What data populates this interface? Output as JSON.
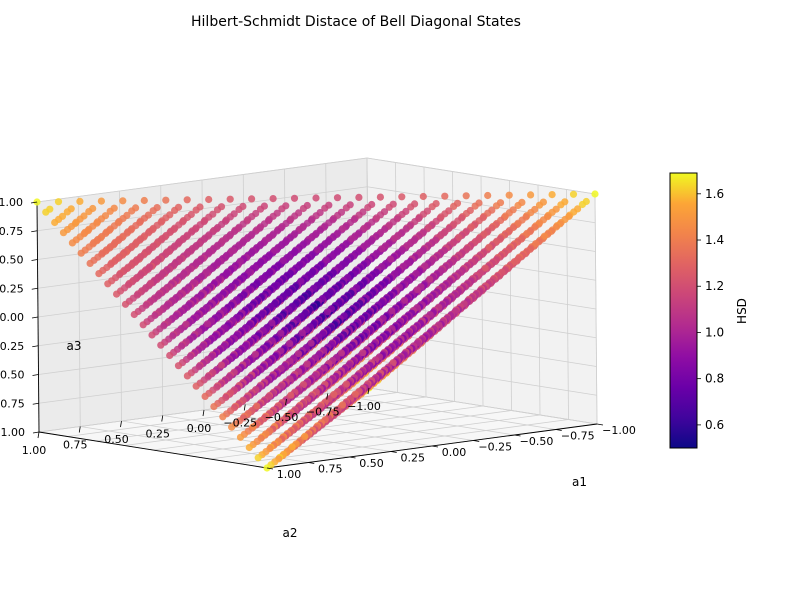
{
  "chart_data": {
    "type": "scatter",
    "projection": "3d",
    "title": "Hilbert-Schmidt Distace of Bell Diagonal States",
    "xlabel": "a1",
    "ylabel": "a2",
    "zlabel": "a3",
    "xlim": [
      -1.0,
      1.0
    ],
    "ylim": [
      -1.0,
      1.0
    ],
    "zlim": [
      -1.0,
      1.0
    ],
    "x_ticks": [
      "-1.00",
      "-0.75",
      "-0.50",
      "-0.25",
      "0.00",
      "0.25",
      "0.50",
      "0.75",
      "1.00"
    ],
    "y_ticks": [
      "1.00",
      "0.75",
      "0.50",
      "0.25",
      "0.00",
      "-0.25",
      "-0.50",
      "-0.75",
      "-1.00"
    ],
    "z_ticks": [
      "-1.00",
      "-0.75",
      "-0.50",
      "-0.25",
      "0.00",
      "0.25",
      "0.50",
      "0.75",
      "1.00"
    ],
    "y_ticks_display": [
      "1.00",
      "0.75",
      "0.50",
      "0.25",
      "0.00",
      "−0.25",
      "−0.50",
      "−0.75",
      "−1.00"
    ],
    "x_ticks_display": [
      "−1.00",
      "−0.75",
      "−0.50",
      "−0.25",
      "0.00",
      "0.25",
      "0.50",
      "0.75",
      "1.00"
    ],
    "z_ticks_display": [
      "−1.00",
      "−0.75",
      "−0.50",
      "−0.25",
      "0.00",
      "0.25",
      "0.50",
      "0.75",
      "1.00"
    ],
    "region": "Bell diagonal states tetrahedron",
    "vertices": [
      {
        "a1": -1,
        "a2": -1,
        "a3": -1
      },
      {
        "a1": -1,
        "a2": 1,
        "a3": 1
      },
      {
        "a1": 1,
        "a2": -1,
        "a3": 1
      },
      {
        "a1": 1,
        "a2": 1,
        "a3": -1
      }
    ],
    "color_value": "HSD",
    "colorbar": {
      "label": "HSD",
      "range": [
        0.5,
        1.69
      ],
      "ticks": [
        "0.6",
        "0.8",
        "1.0",
        "1.2",
        "1.4",
        "1.6"
      ],
      "colormap": "plasma"
    },
    "grid": true,
    "legend": "none"
  }
}
